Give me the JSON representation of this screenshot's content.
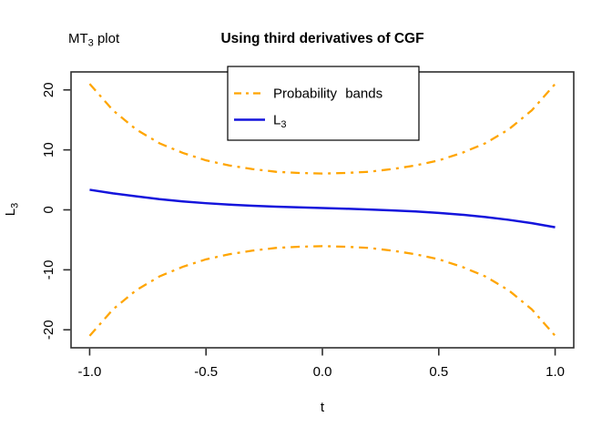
{
  "figure": {
    "corner_label": {
      "main": "MT",
      "sub": "3",
      "rest": " plot"
    },
    "title": "Using third derivatives of CGF"
  },
  "legend": {
    "items": [
      {
        "label": "Probability bands",
        "color": "#FFA500",
        "line_style": "dashdot"
      },
      {
        "label_main": "L",
        "label_sub": "3",
        "color": "#1414DC",
        "line_style": "solid"
      }
    ]
  },
  "chart_data": {
    "type": "line",
    "title": "Using third derivatives of CGF",
    "xlabel": "t",
    "ylabel_main": "L",
    "ylabel_sub": "3",
    "xlim": [
      -1.08,
      1.08
    ],
    "ylim": [
      -23,
      23
    ],
    "grid": false,
    "legend_position": "top-center-inside",
    "x_ticks": [
      -1.0,
      -0.5,
      0.0,
      0.5,
      1.0
    ],
    "x_tick_labels": [
      "-1.0",
      "-0.5",
      "0.0",
      "0.5",
      "1.0"
    ],
    "y_ticks": [
      20,
      10,
      0,
      -10,
      -20
    ],
    "y_tick_labels": [
      "20",
      "10",
      "0",
      "-10",
      "-20"
    ],
    "x": [
      -1.0,
      -0.9,
      -0.8,
      -0.7,
      -0.6,
      -0.5,
      -0.4,
      -0.3,
      -0.2,
      -0.1,
      0.0,
      0.1,
      0.2,
      0.3,
      0.4,
      0.5,
      0.6,
      0.7,
      0.8,
      0.9,
      1.0
    ],
    "series": [
      {
        "name": "Probability band (upper)",
        "color": "#FFA500",
        "style": "dashdot",
        "values": [
          21.0,
          16.6,
          13.4,
          11.1,
          9.5,
          8.25,
          7.4,
          6.8,
          6.35,
          6.15,
          6.05,
          6.15,
          6.35,
          6.8,
          7.4,
          8.25,
          9.5,
          11.1,
          13.4,
          16.6,
          21.0
        ]
      },
      {
        "name": "Probability band (lower)",
        "color": "#FFA500",
        "style": "dashdot",
        "values": [
          -21.0,
          -16.6,
          -13.4,
          -11.1,
          -9.5,
          -8.25,
          -7.4,
          -6.8,
          -6.35,
          -6.15,
          -6.05,
          -6.15,
          -6.35,
          -6.8,
          -7.4,
          -8.25,
          -9.5,
          -11.1,
          -13.4,
          -16.6,
          -21.0
        ]
      },
      {
        "name": "L3",
        "color": "#1414DC",
        "style": "solid",
        "values": [
          3.35,
          2.75,
          2.26,
          1.79,
          1.41,
          1.11,
          0.87,
          0.69,
          0.54,
          0.41,
          0.3,
          0.19,
          0.06,
          -0.09,
          -0.27,
          -0.51,
          -0.81,
          -1.19,
          -1.66,
          -2.22,
          -2.9
        ]
      }
    ]
  }
}
